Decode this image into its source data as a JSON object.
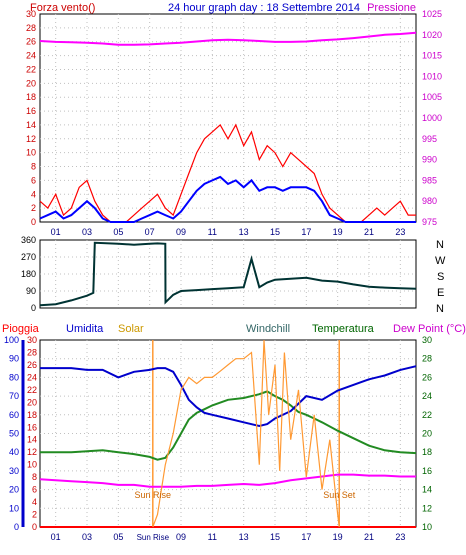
{
  "header": {
    "left_label": "Forza vento()",
    "center_label": "24 hour graph day : 18 Settembre 2014",
    "right_label": "Pressione"
  },
  "direction_labels": [
    "N",
    "W",
    "S",
    "E",
    "N"
  ],
  "legend": {
    "pioggia": "Pioggia",
    "umidita": "Umidita",
    "solar": "Solar",
    "windchill": "Windchill",
    "temperatura": "Temperatura",
    "dewpoint": "Dew Point (°C)"
  },
  "annotations": {
    "sunrise": "Sun Rise",
    "sunset": "Sun Set"
  },
  "colors": {
    "wind_gust": "#ff0000",
    "wind_avg": "#0000ff",
    "pressure": "#ff00ff",
    "direction": "#003333",
    "rain": "#ff0000",
    "humidity": "#0000cc",
    "solar": "#ff9933",
    "temperature": "#228b22",
    "dewpoint": "#ff00ff",
    "grid": "#c0c0c0",
    "axis_red": "#cc0000",
    "axis_magenta": "#cc00cc",
    "axis_blue": "#0000cc",
    "axis_green": "#006400"
  },
  "chart_data": [
    {
      "type": "line",
      "title": "24 hour graph day : 18 Settembre 2014",
      "xlabel": "",
      "ylabel": "Forza vento()",
      "y2label": "Pressione",
      "xlim": [
        0,
        24
      ],
      "ylim": [
        0,
        30
      ],
      "y2lim": [
        975,
        1025
      ],
      "x_ticks": [
        "01",
        "03",
        "05",
        "07",
        "09",
        "11",
        "13",
        "15",
        "17",
        "19",
        "21",
        "23"
      ],
      "y_ticks": [
        0,
        2,
        4,
        6,
        8,
        10,
        12,
        14,
        16,
        18,
        20,
        22,
        24,
        26,
        28,
        30
      ],
      "y2_ticks": [
        975,
        980,
        985,
        990,
        995,
        1000,
        1005,
        1010,
        1015,
        1020,
        1025
      ],
      "series": [
        {
          "name": "Forza vento",
          "axis": "left",
          "style": "gust",
          "x": [
            0,
            0.5,
            1,
            1.5,
            2,
            2.5,
            3,
            3.5,
            4,
            4.5,
            5,
            5.5,
            6,
            6.5,
            7,
            7.5,
            8,
            8.5,
            9,
            9.5,
            10,
            10.5,
            11,
            11.5,
            12,
            12.5,
            13,
            13.5,
            14,
            14.5,
            15,
            15.5,
            16,
            16.5,
            17,
            17.5,
            18,
            18.5,
            19,
            19.5,
            20,
            20.5,
            21,
            21.5,
            22,
            22.5,
            23,
            23.5,
            24
          ],
          "values": [
            3,
            2,
            4,
            1,
            2,
            5,
            6,
            3,
            1,
            0,
            0,
            0,
            1,
            2,
            3,
            4,
            2,
            1,
            4,
            7,
            10,
            12,
            13,
            14,
            12,
            14,
            11,
            13,
            9,
            11,
            10,
            8,
            10,
            9,
            8,
            7,
            4,
            2,
            1,
            0,
            0,
            0,
            1,
            2,
            1,
            2,
            3,
            1,
            1
          ]
        },
        {
          "name": "Media vento",
          "axis": "left",
          "style": "avg",
          "x": [
            0,
            0.5,
            1,
            1.5,
            2,
            2.5,
            3,
            3.5,
            4,
            4.5,
            5,
            5.5,
            6,
            6.5,
            7,
            7.5,
            8,
            8.5,
            9,
            9.5,
            10,
            10.5,
            11,
            11.5,
            12,
            12.5,
            13,
            13.5,
            14,
            14.5,
            15,
            15.5,
            16,
            16.5,
            17,
            17.5,
            18,
            18.5,
            19,
            19.5,
            20,
            20.5,
            21,
            21.5,
            22,
            22.5,
            23,
            23.5,
            24
          ],
          "values": [
            0.5,
            1,
            1.5,
            0.5,
            1,
            2,
            3,
            2,
            0.5,
            0,
            0,
            0,
            0,
            0.5,
            1,
            1.5,
            1,
            0.5,
            1.5,
            3,
            4.5,
            5.5,
            6,
            6.5,
            5.5,
            6,
            5,
            6,
            4.5,
            5,
            5,
            4.5,
            5,
            5,
            5,
            4.5,
            3,
            1,
            0.5,
            0,
            0,
            0,
            0,
            0,
            0,
            0,
            0,
            0,
            0
          ]
        },
        {
          "name": "Pressione",
          "axis": "right",
          "x": [
            0,
            1,
            2,
            3,
            4,
            5,
            6,
            7,
            8,
            9,
            10,
            11,
            12,
            13,
            14,
            15,
            16,
            17,
            18,
            19,
            20,
            21,
            22,
            23,
            24
          ],
          "values": [
            1018.5,
            1018.3,
            1018.2,
            1018.1,
            1017.9,
            1017.6,
            1017.6,
            1017.7,
            1017.9,
            1018.1,
            1018.4,
            1018.7,
            1018.8,
            1018.7,
            1018.5,
            1018.3,
            1018.3,
            1018.4,
            1018.7,
            1018.9,
            1019.2,
            1019.6,
            1020.0,
            1020.2,
            1020.5
          ]
        }
      ]
    },
    {
      "type": "line",
      "title": "",
      "ylabel": "",
      "xlim": [
        0,
        24
      ],
      "ylim": [
        0,
        360
      ],
      "y_ticks": [
        0,
        90,
        180,
        270,
        360
      ],
      "x_ticks": [],
      "series": [
        {
          "name": "Direzione vento",
          "x": [
            0,
            1,
            2,
            3,
            3.4,
            3.5,
            5,
            6,
            7,
            7.5,
            8,
            8.01,
            8.5,
            9,
            10,
            11,
            12,
            13,
            13.5,
            14,
            14.5,
            15,
            16,
            17,
            18,
            19,
            20,
            21,
            22,
            23,
            24
          ],
          "values": [
            15,
            20,
            40,
            65,
            80,
            345,
            340,
            335,
            340,
            342,
            340,
            30,
            70,
            90,
            95,
            100,
            105,
            110,
            260,
            110,
            135,
            150,
            155,
            160,
            145,
            140,
            125,
            112,
            108,
            105,
            102
          ]
        }
      ]
    },
    {
      "type": "line",
      "title": "",
      "xlabel": "",
      "xlim": [
        0,
        24
      ],
      "ylim": [
        0,
        100
      ],
      "y_ticks": [
        0,
        10,
        20,
        30,
        40,
        50,
        60,
        70,
        80,
        90,
        100
      ],
      "y_mid_ticks": [
        0,
        2,
        4,
        6,
        8,
        10,
        12,
        14,
        16,
        18,
        20,
        22,
        24,
        26,
        28,
        30
      ],
      "y2_ticks": [
        10,
        12,
        14,
        16,
        18,
        20,
        22,
        24,
        26,
        28,
        30
      ],
      "x_ticks": [
        "01",
        "03",
        "05",
        "07",
        "09",
        "11",
        "13",
        "15",
        "17",
        "19",
        "21",
        "23"
      ],
      "sunrise_hour": 7.2,
      "sunset_hour": 19.1,
      "series": [
        {
          "name": "Pioggia",
          "values_axis": "rain",
          "x": [
            0,
            24
          ],
          "values": [
            0,
            0
          ]
        },
        {
          "name": "Umidita",
          "values_axis": "humidity",
          "x": [
            0,
            1,
            2,
            3,
            4,
            5,
            6,
            7,
            7.5,
            8,
            8.5,
            9,
            9.5,
            10,
            10.5,
            11,
            12,
            13,
            14,
            14.5,
            15,
            16,
            16.5,
            17,
            18,
            19,
            20,
            21,
            22,
            23,
            24
          ],
          "values": [
            85,
            85,
            85,
            84,
            84,
            80,
            83,
            84,
            85,
            85,
            83,
            76,
            68,
            64,
            61,
            60,
            58,
            56,
            54,
            55,
            58,
            62,
            66,
            70,
            68,
            73,
            76,
            79,
            81,
            84,
            86
          ]
        },
        {
          "name": "Solar",
          "values_axis": "rain",
          "x": [
            7.2,
            7.5,
            8,
            8.5,
            9,
            9.5,
            10,
            10.5,
            11,
            11.5,
            12,
            12.5,
            13,
            13.5,
            14,
            14.3,
            14.6,
            15,
            15.3,
            15.6,
            16,
            16.5,
            17,
            17.5,
            18,
            18.5,
            19,
            19.1
          ],
          "values": [
            0,
            2,
            10,
            15,
            22,
            24,
            23,
            24,
            24,
            25,
            26,
            27,
            27,
            28,
            10,
            30,
            18,
            26,
            9,
            28,
            14,
            22,
            8,
            18,
            6,
            14,
            2,
            0
          ]
        },
        {
          "name": "Temperatura",
          "values_axis": "temp",
          "x": [
            0,
            1,
            2,
            3,
            4,
            5,
            6,
            7,
            7.5,
            8,
            8.5,
            9,
            9.5,
            10,
            10.5,
            11,
            12,
            13,
            14,
            14.5,
            15,
            15.5,
            16,
            16.5,
            17,
            17.5,
            18,
            19,
            20,
            21,
            22,
            23,
            24
          ],
          "values": [
            18,
            18,
            18,
            18.1,
            18.2,
            18,
            17.8,
            17.5,
            17.2,
            17.4,
            18.5,
            20,
            21.5,
            22.2,
            22.6,
            23,
            23.6,
            23.8,
            24.2,
            24.5,
            24,
            23.6,
            23,
            22.3,
            22,
            21.6,
            21.2,
            20.3,
            19.5,
            18.7,
            18.2,
            18,
            17.9
          ]
        },
        {
          "name": "Dew Point",
          "values_axis": "temp",
          "x": [
            0,
            1,
            2,
            3,
            4,
            5,
            6,
            7,
            8,
            9,
            10,
            11,
            12,
            13,
            14,
            15,
            16,
            17,
            18,
            19,
            20,
            21,
            22,
            23,
            24
          ],
          "values": [
            15.1,
            15,
            14.9,
            14.8,
            14.7,
            14.5,
            14.5,
            14.3,
            14.3,
            14.3,
            14.4,
            14.4,
            14.5,
            14.6,
            14.5,
            14.7,
            15,
            15.2,
            15.4,
            15.6,
            15.6,
            15.5,
            15.5,
            15.4,
            15.4
          ]
        }
      ]
    }
  ]
}
